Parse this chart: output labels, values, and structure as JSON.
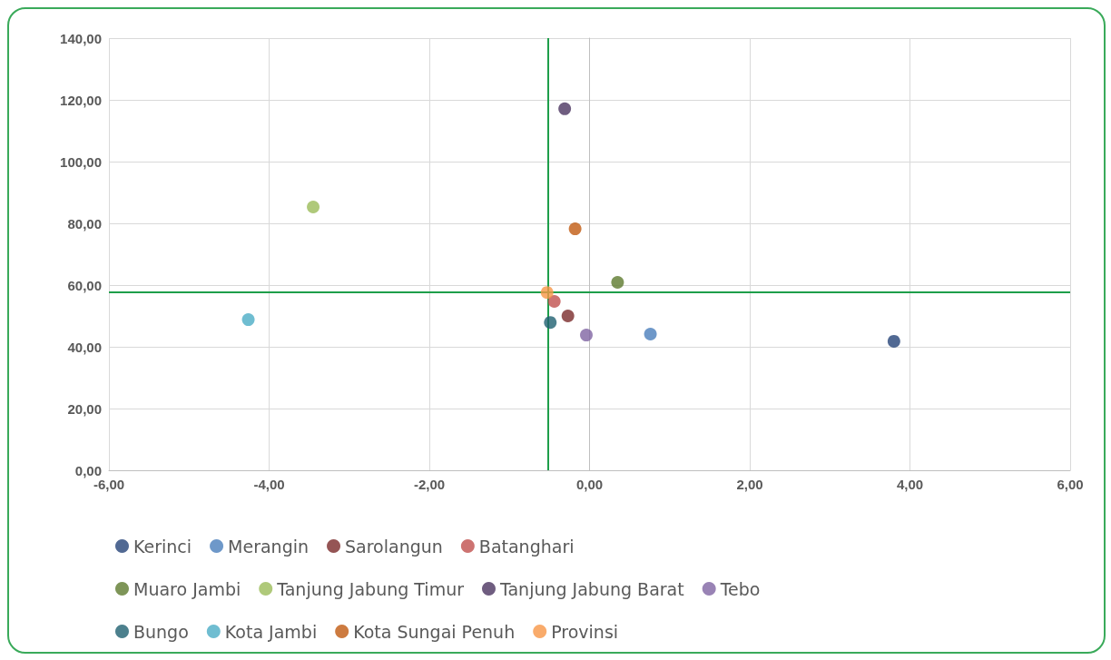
{
  "chart_data": {
    "type": "scatter",
    "marker": "circle",
    "grid": true,
    "legend": "bottom",
    "xlim": [
      -6,
      6
    ],
    "xticks": [
      {
        "value": -6,
        "label": "-6,00"
      },
      {
        "value": -4,
        "label": "-4,00"
      },
      {
        "value": -2,
        "label": "-2,00"
      },
      {
        "value": 0,
        "label": "0,00"
      },
      {
        "value": 2,
        "label": "2,00"
      },
      {
        "value": 4,
        "label": "4,00"
      },
      {
        "value": 6,
        "label": "6,00"
      }
    ],
    "ylim": [
      0,
      140
    ],
    "yticks": [
      {
        "value": 0,
        "label": "0,00"
      },
      {
        "value": 20,
        "label": "20,00"
      },
      {
        "value": 40,
        "label": "40,00"
      },
      {
        "value": 60,
        "label": "60,00"
      },
      {
        "value": 80,
        "label": "80,00"
      },
      {
        "value": 100,
        "label": "100,00"
      },
      {
        "value": 120,
        "label": "120,00"
      },
      {
        "value": 140,
        "label": "140,00"
      }
    ],
    "ref_lines": [
      {
        "axis": "x",
        "value": -0.52,
        "color": "#1e9e4a"
      },
      {
        "axis": "y",
        "value": 57.6,
        "color": "#1e9e4a"
      }
    ],
    "series": [
      {
        "name": "Kerinci",
        "color": "#264478",
        "x": [
          3.8
        ],
        "values": [
          41.8
        ]
      },
      {
        "name": "Merangin",
        "color": "#4a7ebb",
        "x": [
          0.76
        ],
        "values": [
          44.1
        ]
      },
      {
        "name": "Sarolangun",
        "color": "#7b2a2a",
        "x": [
          -0.27
        ],
        "values": [
          50.0
        ]
      },
      {
        "name": "Batanghari",
        "color": "#c0504d",
        "x": [
          -0.44
        ],
        "values": [
          54.7
        ]
      },
      {
        "name": "Muaro Jambi",
        "color": "#5e7a2e",
        "x": [
          0.35
        ],
        "values": [
          60.9
        ]
      },
      {
        "name": "Tanjung Jabung Timur",
        "color": "#9bbb59",
        "x": [
          -3.45
        ],
        "values": [
          85.3
        ]
      },
      {
        "name": "Tanjung Jabung Barat",
        "color": "#4b3560",
        "x": [
          -0.31
        ],
        "values": [
          117.1
        ]
      },
      {
        "name": "Tebo",
        "color": "#8064a2",
        "x": [
          -0.04
        ],
        "values": [
          43.8
        ]
      },
      {
        "name": "Bungo",
        "color": "#1f6070",
        "x": [
          -0.49
        ],
        "values": [
          47.9
        ]
      },
      {
        "name": "Kota Jambi",
        "color": "#4bacc6",
        "x": [
          -4.26
        ],
        "values": [
          48.8
        ]
      },
      {
        "name": "Kota Sungai Penuh",
        "color": "#c05a10",
        "x": [
          -0.18
        ],
        "values": [
          78.2
        ]
      },
      {
        "name": "Provinsi",
        "color": "#f79646",
        "x": [
          -0.53
        ],
        "values": [
          57.6
        ]
      }
    ]
  }
}
